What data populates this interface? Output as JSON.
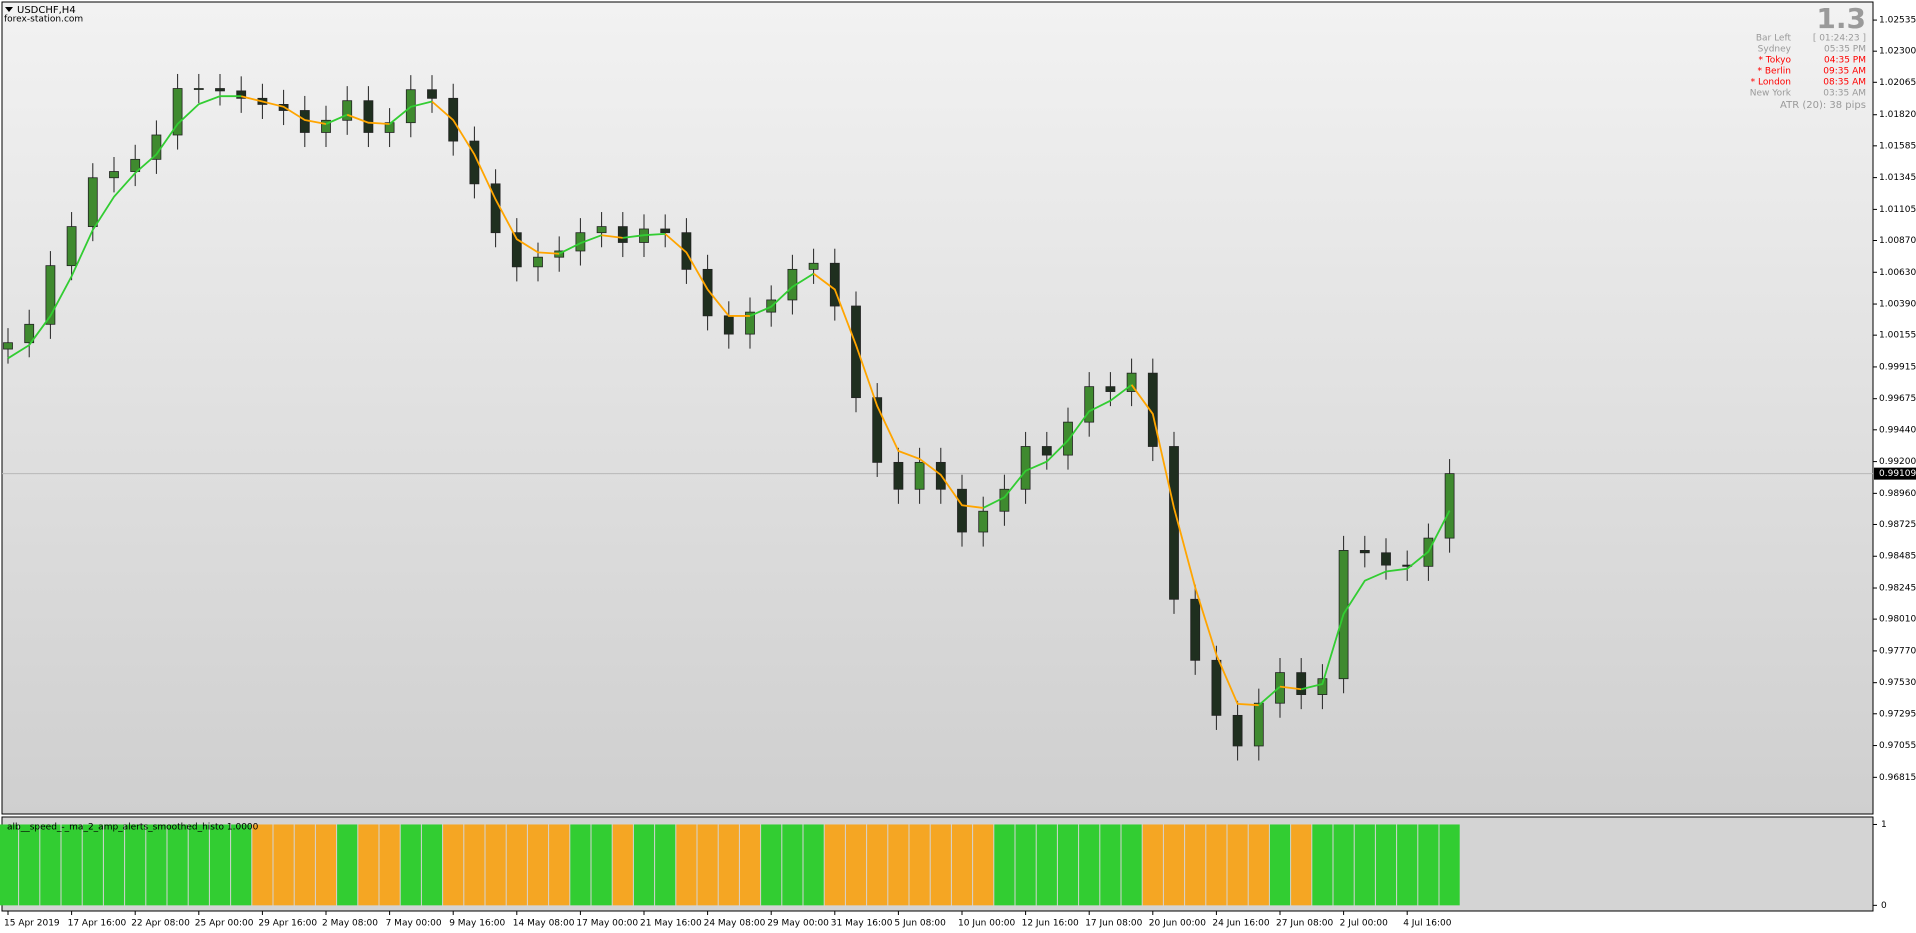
{
  "chart_data": {
    "type": "candlestick",
    "title": "USDCHF,H4",
    "subtitle": "forex-station.com",
    "categories": [
      "15 Apr 2019",
      null,
      null,
      "17 Apr 16:00",
      null,
      null,
      "22 Apr 08:00",
      null,
      null,
      "25 Apr 00:00",
      null,
      null,
      "29 Apr 16:00",
      null,
      null,
      "2 May 08:00",
      null,
      null,
      "7 May 00:00",
      null,
      null,
      "9 May 16:00",
      null,
      null,
      "14 May 08:00",
      null,
      null,
      "17 May 00:00",
      null,
      null,
      "21 May 16:00",
      null,
      null,
      "24 May 08:00",
      null,
      null,
      "29 May 00:00",
      null,
      null,
      "31 May 16:00",
      null,
      null,
      "5 Jun 08:00",
      null,
      null,
      "10 Jun 00:00",
      null,
      null,
      "12 Jun 16:00",
      null,
      null,
      "17 Jun 08:00",
      null,
      null,
      "20 Jun 00:00",
      null,
      null,
      "24 Jun 16:00",
      null,
      null,
      "27 Jun 08:00",
      null,
      null,
      "2 Jul 00:00",
      null,
      null,
      "4 Jul 16:00",
      null,
      null
    ],
    "open": [
      1.0005,
      1.00098,
      1.00237,
      1.0068,
      1.00975,
      1.01344,
      1.01391,
      1.01483,
      1.01667,
      1.02018,
      1.02018,
      1.02,
      1.01944,
      1.01898,
      1.01852,
      1.01686,
      1.01778,
      1.01926,
      1.01686,
      1.0176,
      1.02009,
      1.01944,
      1.01621,
      1.01298,
      1.00929,
      1.00671,
      1.00744,
      1.00791,
      1.00929,
      1.00975,
      1.00855,
      1.00957,
      1.00929,
      1.00652,
      1.00301,
      1.00163,
      1.00329,
      1.00421,
      1.00652,
      1.00698,
      1.00375,
      0.99683,
      0.99194,
      0.98991,
      0.99194,
      0.98991,
      0.98668,
      0.98825,
      0.98991,
      0.99314,
      0.99249,
      0.99498,
      0.99766,
      0.99729,
      0.99868,
      0.99314,
      0.9816,
      0.97699,
      0.97283,
      0.97052,
      0.97375,
      0.97606,
      0.9744,
      0.9756,
      0.98529,
      0.98511,
      0.98418,
      0.98409,
      0.98622
    ],
    "high": [
      1.00208,
      1.00347,
      1.0079,
      1.01085,
      1.01454,
      1.01501,
      1.01593,
      1.01777,
      1.02128,
      1.02128,
      1.02128,
      1.0211,
      1.02054,
      1.02008,
      1.01962,
      1.01888,
      1.02036,
      1.02036,
      1.0187,
      1.02119,
      1.02119,
      1.02054,
      1.01731,
      1.01408,
      1.01039,
      1.00854,
      1.00901,
      1.01039,
      1.01085,
      1.01085,
      1.01067,
      1.01067,
      1.01039,
      1.00762,
      1.00411,
      1.00439,
      1.00531,
      1.00762,
      1.00808,
      1.00808,
      1.00485,
      0.99793,
      0.99304,
      0.99304,
      0.99304,
      0.99101,
      0.98935,
      0.99101,
      0.99424,
      0.99424,
      0.99608,
      0.99876,
      0.99876,
      0.99978,
      0.99978,
      0.99424,
      0.9827,
      0.97809,
      0.97393,
      0.97485,
      0.97716,
      0.97716,
      0.9767,
      0.98639,
      0.98639,
      0.98621,
      0.98528,
      0.98732,
      0.99219
    ],
    "low": [
      0.9994,
      0.99988,
      1.00127,
      1.0057,
      1.00865,
      1.01234,
      1.01281,
      1.01373,
      1.01557,
      1.01908,
      1.0189,
      1.01834,
      1.01788,
      1.01742,
      1.01576,
      1.01576,
      1.01668,
      1.01576,
      1.01576,
      1.0165,
      1.01834,
      1.01511,
      1.01188,
      1.00819,
      1.00561,
      1.00561,
      1.00634,
      1.00681,
      1.00819,
      1.00745,
      1.00745,
      1.00819,
      1.00542,
      1.00191,
      1.00053,
      1.00053,
      1.00219,
      1.00311,
      1.00542,
      1.00265,
      0.99573,
      0.99084,
      0.98881,
      0.98881,
      0.98881,
      0.98558,
      0.98558,
      0.98715,
      0.98881,
      0.99139,
      0.99139,
      0.99388,
      0.99619,
      0.99619,
      0.99204,
      0.9805,
      0.97589,
      0.97173,
      0.96942,
      0.96942,
      0.97265,
      0.9733,
      0.9733,
      0.9745,
      0.98401,
      0.98308,
      0.98299,
      0.98299,
      0.98512
    ],
    "close": [
      1.00098,
      1.00237,
      1.0068,
      1.00975,
      1.01344,
      1.01391,
      1.01483,
      1.01667,
      1.02018,
      1.02018,
      1.02,
      1.01944,
      1.01898,
      1.01852,
      1.01686,
      1.01778,
      1.01926,
      1.01686,
      1.0176,
      1.02009,
      1.01944,
      1.01621,
      1.01298,
      1.00929,
      1.00671,
      1.00744,
      1.00791,
      1.00929,
      1.00975,
      1.00855,
      1.00957,
      1.00929,
      1.00652,
      1.00301,
      1.00163,
      1.00329,
      1.00421,
      1.00652,
      1.00698,
      1.00375,
      0.99683,
      0.99194,
      0.98991,
      0.99194,
      0.98991,
      0.98668,
      0.98825,
      0.98991,
      0.99314,
      0.99249,
      0.99498,
      0.99766,
      0.99729,
      0.99868,
      0.99314,
      0.9816,
      0.97699,
      0.97283,
      0.97052,
      0.97375,
      0.97606,
      0.9744,
      0.9756,
      0.98529,
      0.98511,
      0.98418,
      0.98409,
      0.98622,
      0.99109
    ],
    "up_color": "#3f8a2f",
    "down_color": "#1f2f1f",
    "ma": {
      "values": [
        0.9998,
        1.0008,
        1.003,
        1.006,
        1.0095,
        1.012,
        1.0138,
        1.0152,
        1.0175,
        1.019,
        1.0196,
        1.0196,
        1.0192,
        1.0188,
        1.0178,
        1.0175,
        1.0182,
        1.0176,
        1.0175,
        1.0188,
        1.0192,
        1.0178,
        1.0152,
        1.0118,
        1.0088,
        1.0078,
        1.0077,
        1.0085,
        1.0091,
        1.0089,
        1.0091,
        1.0092,
        1.0078,
        1.005,
        1.003,
        1.003,
        1.0037,
        1.0052,
        1.0062,
        1.005,
        1.0008,
        0.9962,
        0.9928,
        0.9922,
        0.991,
        0.9887,
        0.9885,
        0.9893,
        0.9913,
        0.992,
        0.9936,
        0.9958,
        0.9966,
        0.9978,
        0.9956,
        0.9885,
        0.9825,
        0.9774,
        0.9737,
        0.9736,
        0.975,
        0.9748,
        0.9752,
        0.9805,
        0.983,
        0.9837,
        0.9839,
        0.9852,
        0.9883
      ],
      "up_color": "#32cd32",
      "down_color": "#ffa500"
    },
    "trend": [
      "up",
      "up",
      "up",
      "up",
      "up",
      "up",
      "up",
      "up",
      "up",
      "up",
      "up",
      "up",
      "down",
      "down",
      "down",
      "down",
      "up",
      "down",
      "down",
      "up",
      "up",
      "down",
      "down",
      "down",
      "down",
      "down",
      "down",
      "up",
      "up",
      "down",
      "up",
      "up",
      "down",
      "down",
      "down",
      "down",
      "up",
      "up",
      "up",
      "down",
      "down",
      "down",
      "down",
      "down",
      "down",
      "down",
      "down",
      "up",
      "up",
      "up",
      "up",
      "up",
      "up",
      "up",
      "down",
      "down",
      "down",
      "down",
      "down",
      "down",
      "up",
      "down",
      "up",
      "up",
      "up",
      "up",
      "up",
      "up",
      "up"
    ],
    "ylim": [
      0.96538,
      1.02664
    ],
    "yticks": [
      1.02535,
      {
        "value": 1.023,
        "label": "1.02300"
      },
      1.02065,
      {
        "value": 1.0182,
        "label": "1.01820"
      },
      1.01585,
      1.01345,
      1.01105,
      {
        "value": 1.0087,
        "label": "1.00870"
      },
      {
        "value": 1.0063,
        "label": "1.00630"
      },
      {
        "value": 1.0039,
        "label": "1.00390"
      },
      1.00155,
      0.99915,
      0.99675,
      {
        "value": 0.9944,
        "label": "0.99440"
      },
      {
        "value": 0.992,
        "label": "0.99200"
      },
      {
        "value": 0.9896,
        "label": "0.98960"
      },
      0.98725,
      0.98485,
      0.98245,
      {
        "value": 0.9801,
        "label": "0.98010"
      },
      {
        "value": 0.9777,
        "label": "0.97770"
      },
      {
        "value": 0.9753,
        "label": "0.97530"
      },
      0.97295,
      0.97055,
      0.96815
    ],
    "last_price": 0.99109,
    "histogram": {
      "name": "alb__speed_-_ma_2_amp_alerts_smoothed_histo 1.0000",
      "values": [
        1,
        1,
        1,
        1,
        1,
        1,
        1,
        1,
        1,
        1,
        1,
        1,
        1,
        1,
        1,
        1,
        1,
        1,
        1,
        1,
        1,
        1,
        1,
        1,
        1,
        1,
        1,
        1,
        1,
        1,
        1,
        1,
        1,
        1,
        1,
        1,
        1,
        1,
        1,
        1,
        1,
        1,
        1,
        1,
        1,
        1,
        1,
        1,
        1,
        1,
        1,
        1,
        1,
        1,
        1,
        1,
        1,
        1,
        1,
        1,
        1,
        1,
        1,
        1,
        1,
        1,
        1,
        1,
        1
      ],
      "ylim": [
        -0.07,
        1.08
      ],
      "yticks": [
        1,
        0
      ],
      "up_color": "#32cd32",
      "down_color": "#f5a623"
    }
  },
  "info_panel": {
    "version": "1.3",
    "rows": [
      {
        "label": "Bar Left",
        "value": "[ 01:24:23 ]",
        "color": "#9a9a9a"
      },
      {
        "label": "Sydney",
        "value": "05:35 PM",
        "color": "#9a9a9a"
      },
      {
        "label": "* Tokyo",
        "value": "04:35 PM",
        "color": "#ff0000"
      },
      {
        "label": "* Berlin",
        "value": "09:35 AM",
        "color": "#ff0000"
      },
      {
        "label": "* London",
        "value": "08:35 AM",
        "color": "#ff0000"
      },
      {
        "label": "New York",
        "value": "03:35 AM",
        "color": "#9a9a9a"
      }
    ],
    "atr": "ATR (20): 38 pips"
  }
}
